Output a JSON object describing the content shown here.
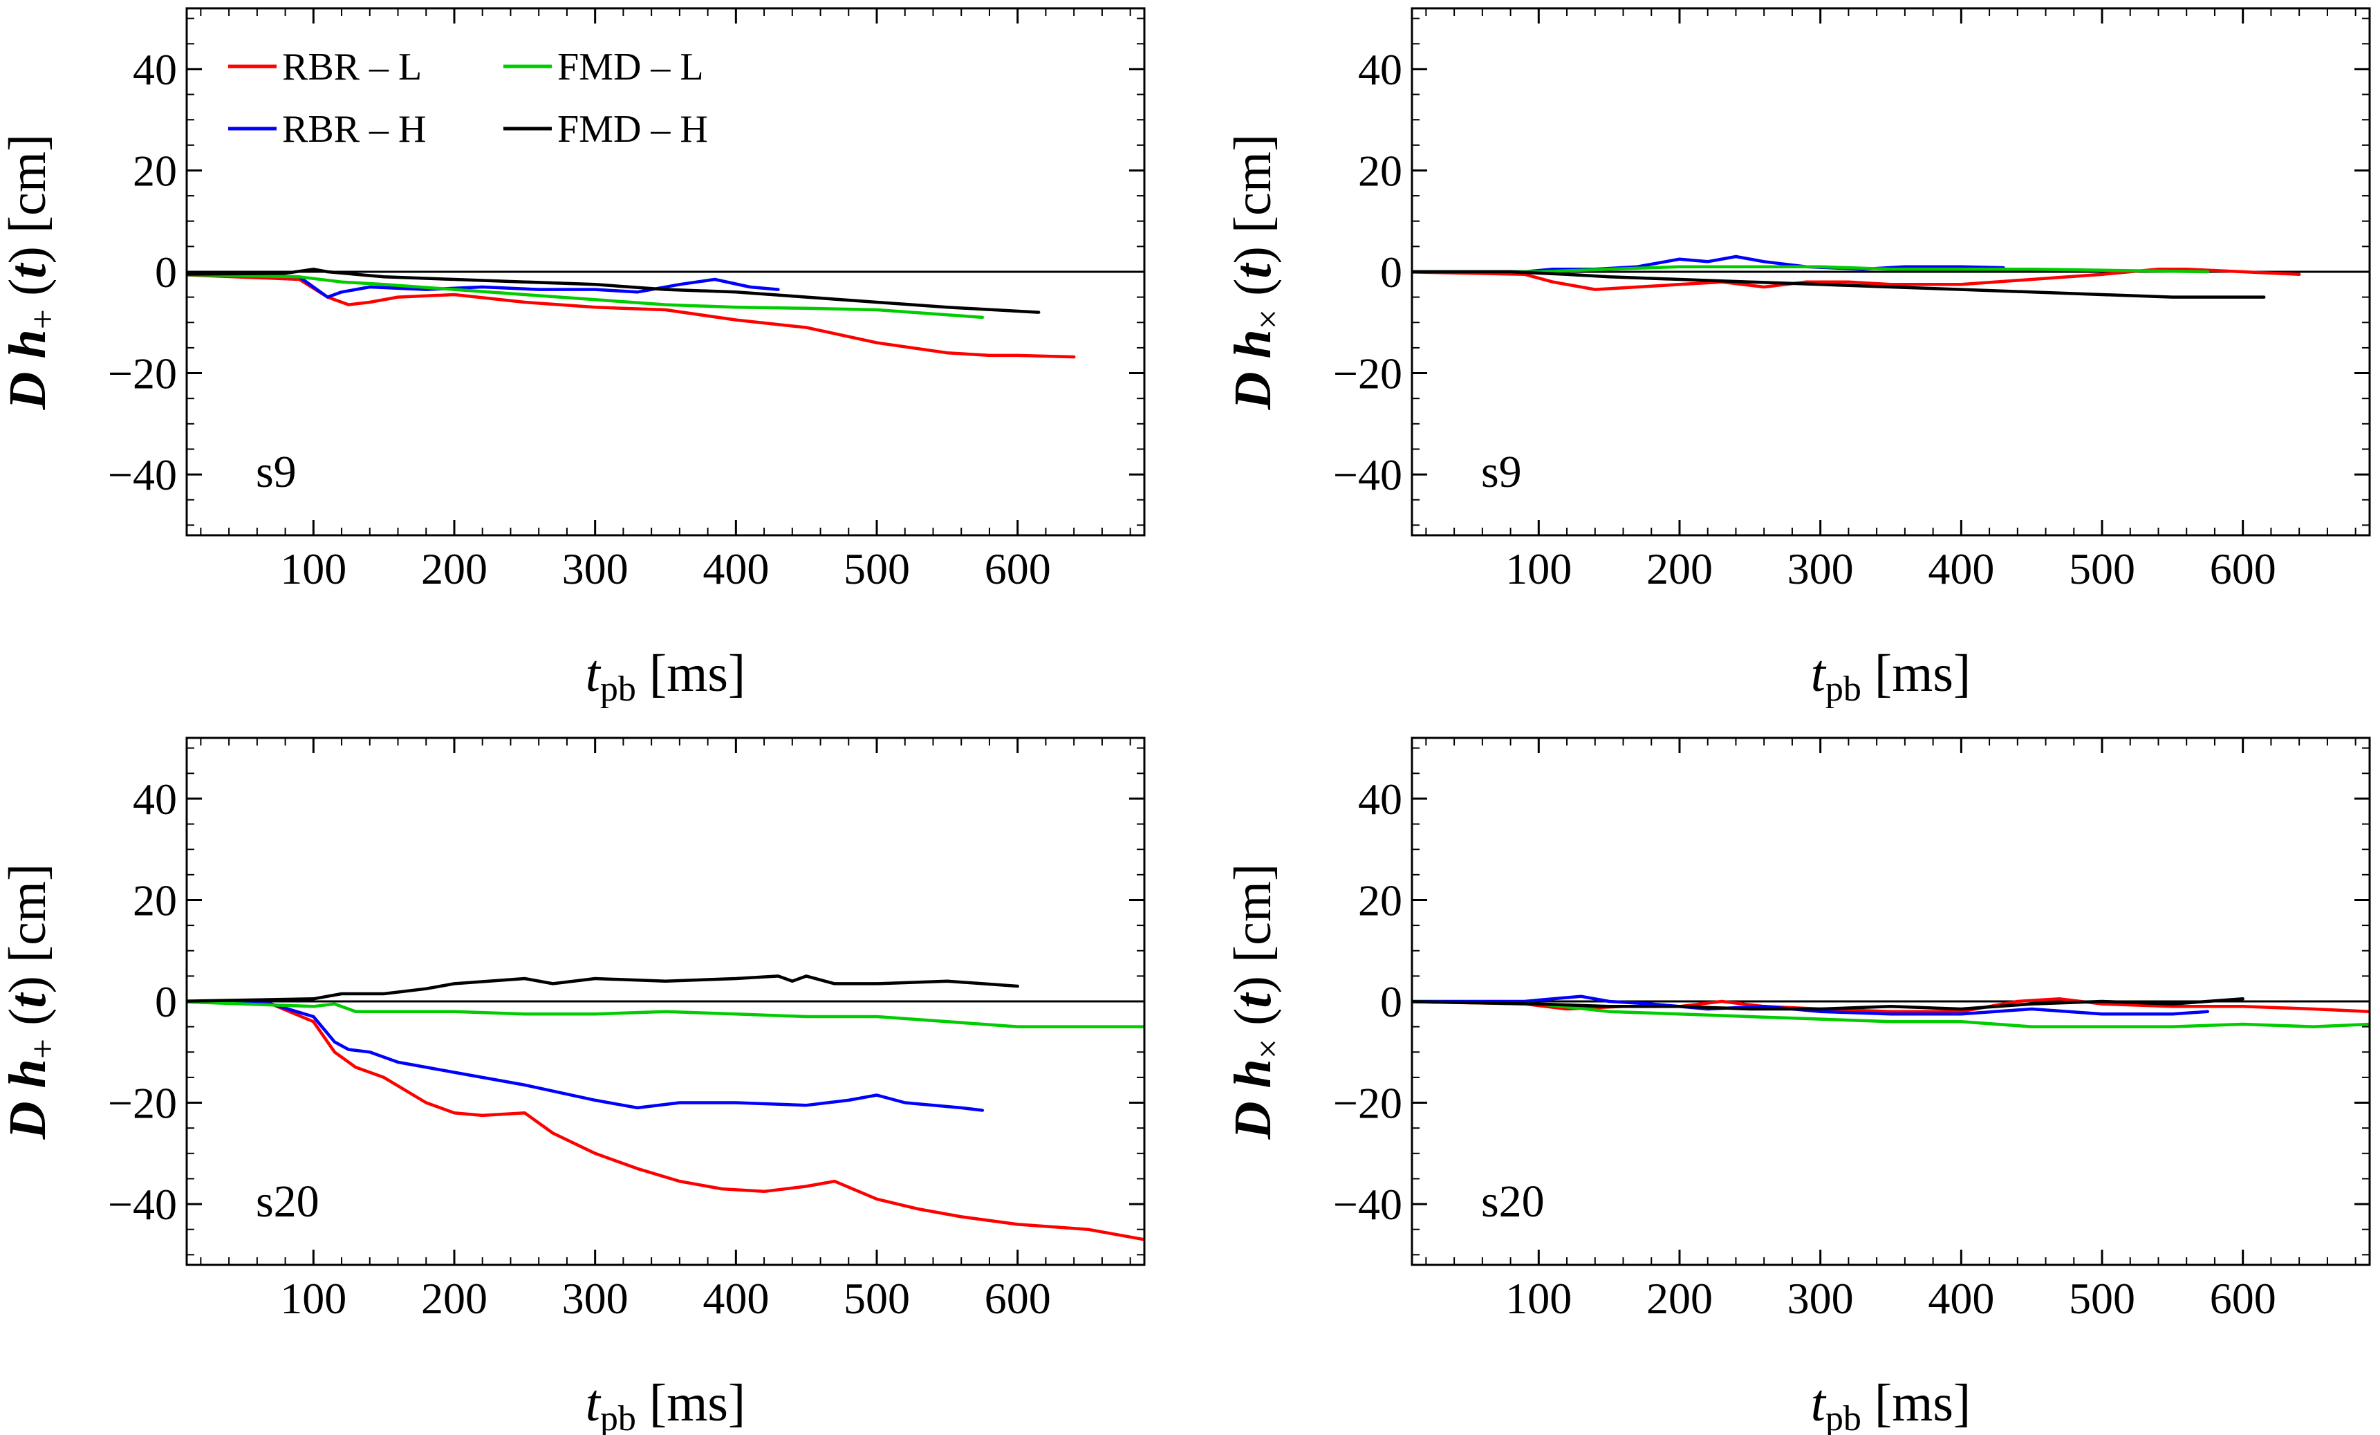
{
  "figure": {
    "legend": [
      {
        "label": "RBR – L",
        "color": "#ff0000"
      },
      {
        "label": "FMD – L",
        "color": "#00cc00"
      },
      {
        "label": "RBR – H",
        "color": "#0000ff"
      },
      {
        "label": "FMD – H",
        "color": "#000000"
      }
    ],
    "xlabel": {
      "main": "t",
      "sub": "pb",
      "unit": "[ms]"
    },
    "ylabel_plus": {
      "prefix": "D h",
      "sub": "+",
      "suffix": " (t) [cm]"
    },
    "ylabel_cross": {
      "prefix": "D h",
      "sub": "×",
      "suffix": " (t) [cm]"
    }
  },
  "chart_data": [
    {
      "type": "line",
      "panel": "s9-plus",
      "label": "s9",
      "xlim": [
        10,
        690
      ],
      "ylim": [
        -52,
        52
      ],
      "xticks": [
        100,
        200,
        300,
        400,
        500,
        600
      ],
      "yticks": [
        -40,
        -20,
        0,
        20,
        40
      ],
      "series": [
        {
          "name": "RBR – L",
          "color": "#ff0000",
          "x": [
            0,
            90,
            110,
            125,
            140,
            160,
            200,
            250,
            300,
            350,
            400,
            450,
            500,
            550,
            580,
            600,
            640
          ],
          "y": [
            -0.5,
            -1.5,
            -5,
            -6.5,
            -6,
            -5,
            -4.5,
            -6,
            -7,
            -7.5,
            -9.5,
            -11,
            -14,
            -16,
            -16.5,
            -16.5,
            -16.8
          ]
        },
        {
          "name": "RBR – H",
          "color": "#0000ff",
          "x": [
            0,
            90,
            100,
            110,
            120,
            140,
            180,
            220,
            260,
            300,
            330,
            360,
            385,
            410,
            430
          ],
          "y": [
            -0.5,
            -1,
            -3,
            -5,
            -4,
            -3,
            -3.5,
            -3,
            -3.5,
            -3.5,
            -4,
            -2.5,
            -1.5,
            -3,
            -3.5
          ]
        },
        {
          "name": "FMD – L",
          "color": "#00cc00",
          "x": [
            0,
            90,
            120,
            150,
            200,
            250,
            300,
            350,
            400,
            450,
            500,
            575
          ],
          "y": [
            -0.5,
            -1,
            -2,
            -2.5,
            -3.5,
            -4.5,
            -5.5,
            -6.5,
            -7,
            -7.2,
            -7.5,
            -9
          ]
        },
        {
          "name": "FMD – H",
          "color": "#000000",
          "x": [
            0,
            80,
            100,
            110,
            150,
            200,
            250,
            300,
            350,
            400,
            450,
            500,
            550,
            615
          ],
          "y": [
            -0.5,
            -0.3,
            0.5,
            0,
            -1,
            -1.5,
            -2,
            -2.5,
            -3.5,
            -4,
            -5,
            -6,
            -7,
            -8
          ]
        }
      ]
    },
    {
      "type": "line",
      "panel": "s9-cross",
      "label": "s9",
      "xlim": [
        10,
        690
      ],
      "ylim": [
        -52,
        52
      ],
      "xticks": [
        100,
        200,
        300,
        400,
        500,
        600
      ],
      "yticks": [
        -40,
        -20,
        0,
        20,
        40
      ],
      "series": [
        {
          "name": "RBR – L",
          "color": "#ff0000",
          "x": [
            0,
            90,
            110,
            140,
            170,
            200,
            230,
            260,
            290,
            320,
            350,
            400,
            450,
            500,
            540,
            560,
            600,
            640
          ],
          "y": [
            0,
            -0.5,
            -2,
            -3.5,
            -3,
            -2.5,
            -2,
            -3,
            -2,
            -2,
            -2.5,
            -2.5,
            -1.5,
            -0.5,
            0.5,
            0.5,
            0,
            -0.5
          ]
        },
        {
          "name": "RBR – H",
          "color": "#0000ff",
          "x": [
            0,
            90,
            110,
            140,
            170,
            200,
            220,
            240,
            260,
            290,
            330,
            360,
            400,
            430
          ],
          "y": [
            0,
            0,
            0.5,
            0.5,
            1,
            2.5,
            2,
            3,
            2,
            1,
            0.5,
            1,
            1,
            0.8
          ]
        },
        {
          "name": "FMD – L",
          "color": "#00cc00",
          "x": [
            0,
            100,
            150,
            200,
            250,
            300,
            350,
            400,
            450,
            500,
            575
          ],
          "y": [
            0,
            0,
            0.5,
            1,
            1,
            1,
            0.5,
            0.5,
            0.5,
            0.3,
            0
          ]
        },
        {
          "name": "FMD – H",
          "color": "#000000",
          "x": [
            0,
            80,
            120,
            150,
            200,
            250,
            300,
            350,
            400,
            450,
            500,
            550,
            615
          ],
          "y": [
            0,
            0,
            -0.5,
            -1,
            -1.5,
            -2,
            -2.5,
            -3,
            -3.5,
            -4,
            -4.5,
            -5,
            -5
          ]
        }
      ]
    },
    {
      "type": "line",
      "panel": "s20-plus",
      "label": "s20",
      "xlim": [
        10,
        690
      ],
      "ylim": [
        -52,
        52
      ],
      "xticks": [
        100,
        200,
        300,
        400,
        500,
        600
      ],
      "yticks": [
        -40,
        -20,
        0,
        20,
        40
      ],
      "series": [
        {
          "name": "RBR – L",
          "color": "#ff0000",
          "x": [
            0,
            70,
            100,
            115,
            130,
            150,
            180,
            200,
            220,
            250,
            270,
            300,
            330,
            360,
            390,
            420,
            450,
            470,
            500,
            530,
            560,
            600,
            650,
            690
          ],
          "y": [
            0,
            -0.5,
            -4,
            -10,
            -13,
            -15,
            -20,
            -22,
            -22.5,
            -22,
            -26,
            -30,
            -33,
            -35.5,
            -37,
            -37.5,
            -36.5,
            -35.5,
            -39,
            -41,
            -42.5,
            -44,
            -45,
            -47
          ]
        },
        {
          "name": "RBR – H",
          "color": "#0000ff",
          "x": [
            0,
            70,
            100,
            115,
            125,
            140,
            160,
            200,
            250,
            300,
            330,
            360,
            400,
            450,
            480,
            500,
            520,
            560,
            575
          ],
          "y": [
            0,
            -0.5,
            -3,
            -8,
            -9.5,
            -10,
            -12,
            -14,
            -16.5,
            -19.5,
            -21,
            -20,
            -20,
            -20.5,
            -19.5,
            -18.5,
            -20,
            -21,
            -21.5
          ]
        },
        {
          "name": "FMD – L",
          "color": "#00cc00",
          "x": [
            0,
            100,
            115,
            130,
            160,
            200,
            250,
            300,
            350,
            400,
            450,
            500,
            550,
            600,
            650,
            690
          ],
          "y": [
            0,
            -1,
            -0.5,
            -2,
            -2,
            -2,
            -2.5,
            -2.5,
            -2,
            -2.5,
            -3,
            -3,
            -4,
            -5,
            -5,
            -5
          ]
        },
        {
          "name": "FMD – H",
          "color": "#000000",
          "x": [
            0,
            100,
            120,
            150,
            180,
            200,
            250,
            270,
            300,
            350,
            400,
            430,
            440,
            450,
            470,
            500,
            550,
            600
          ],
          "y": [
            0,
            0.5,
            1.5,
            1.5,
            2.5,
            3.5,
            4.5,
            3.5,
            4.5,
            4,
            4.5,
            5,
            4,
            5,
            3.5,
            3.5,
            4,
            3
          ]
        }
      ]
    },
    {
      "type": "line",
      "panel": "s20-cross",
      "label": "s20",
      "xlim": [
        10,
        690
      ],
      "ylim": [
        -52,
        52
      ],
      "xticks": [
        100,
        200,
        300,
        400,
        500,
        600
      ],
      "yticks": [
        -40,
        -20,
        0,
        20,
        40
      ],
      "series": [
        {
          "name": "RBR – L",
          "color": "#ff0000",
          "x": [
            0,
            90,
            120,
            160,
            200,
            230,
            260,
            300,
            350,
            400,
            440,
            470,
            500,
            550,
            600,
            650,
            690
          ],
          "y": [
            0,
            -0.5,
            -1.5,
            -1,
            -1,
            0,
            -1,
            -1.5,
            -2,
            -2,
            0,
            0.5,
            -0.5,
            -1,
            -1,
            -1.5,
            -2
          ]
        },
        {
          "name": "RBR – H",
          "color": "#0000ff",
          "x": [
            0,
            90,
            110,
            130,
            150,
            180,
            220,
            260,
            300,
            350,
            400,
            450,
            500,
            550,
            575
          ],
          "y": [
            0,
            0,
            0.5,
            1,
            0,
            -0.5,
            -1.5,
            -1,
            -2,
            -2.5,
            -2.5,
            -1.5,
            -2.5,
            -2.5,
            -2
          ]
        },
        {
          "name": "FMD – L",
          "color": "#00cc00",
          "x": [
            0,
            100,
            150,
            200,
            250,
            300,
            350,
            400,
            450,
            500,
            550,
            600,
            650,
            690
          ],
          "y": [
            0,
            -0.5,
            -2,
            -2.5,
            -3,
            -3.5,
            -4,
            -4,
            -5,
            -5,
            -5,
            -4.5,
            -5,
            -4.5
          ]
        },
        {
          "name": "FMD – H",
          "color": "#000000",
          "x": [
            0,
            100,
            150,
            200,
            250,
            300,
            350,
            400,
            450,
            500,
            550,
            600
          ],
          "y": [
            0,
            -0.5,
            -1,
            -1,
            -1.5,
            -1.5,
            -1,
            -1.5,
            -0.5,
            0,
            -0.5,
            0.5
          ]
        }
      ]
    }
  ]
}
